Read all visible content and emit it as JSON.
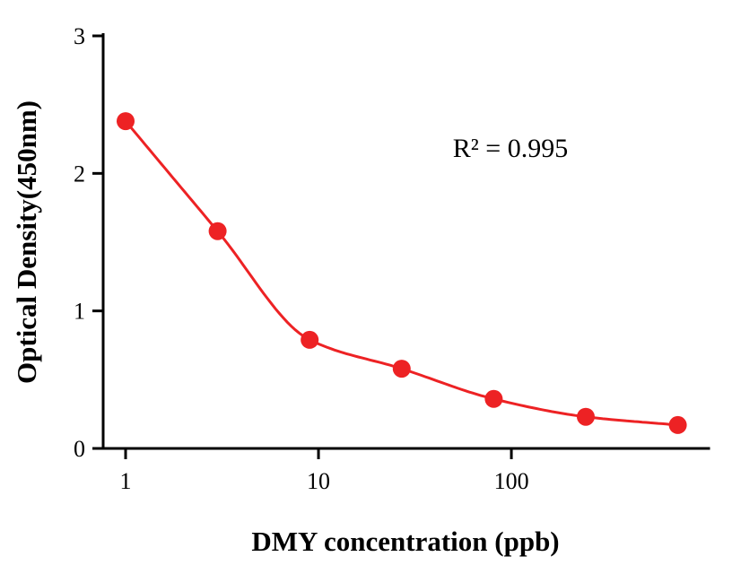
{
  "chart_data": {
    "type": "scatter",
    "xlabel": "DMY concentration (ppb)",
    "ylabel": "Optical Density(450nm)",
    "annotation": "R² = 0.995",
    "x_scale": "log",
    "xlim": [
      0.765,
      1054
    ],
    "ylim": [
      0,
      3
    ],
    "xticks": [
      1,
      10,
      100
    ],
    "yticks": [
      0,
      1,
      2,
      3
    ],
    "points": {
      "x": [
        1,
        3,
        9,
        27,
        81,
        243,
        729
      ],
      "y": [
        2.38,
        1.58,
        0.79,
        0.58,
        0.36,
        0.23,
        0.17
      ]
    },
    "fit_curve": true,
    "grid": false,
    "legend": "none",
    "point_color": "#ED2224",
    "line_color": "#ED2224",
    "axis_color": "#000000",
    "background": "#FFFFFF"
  }
}
